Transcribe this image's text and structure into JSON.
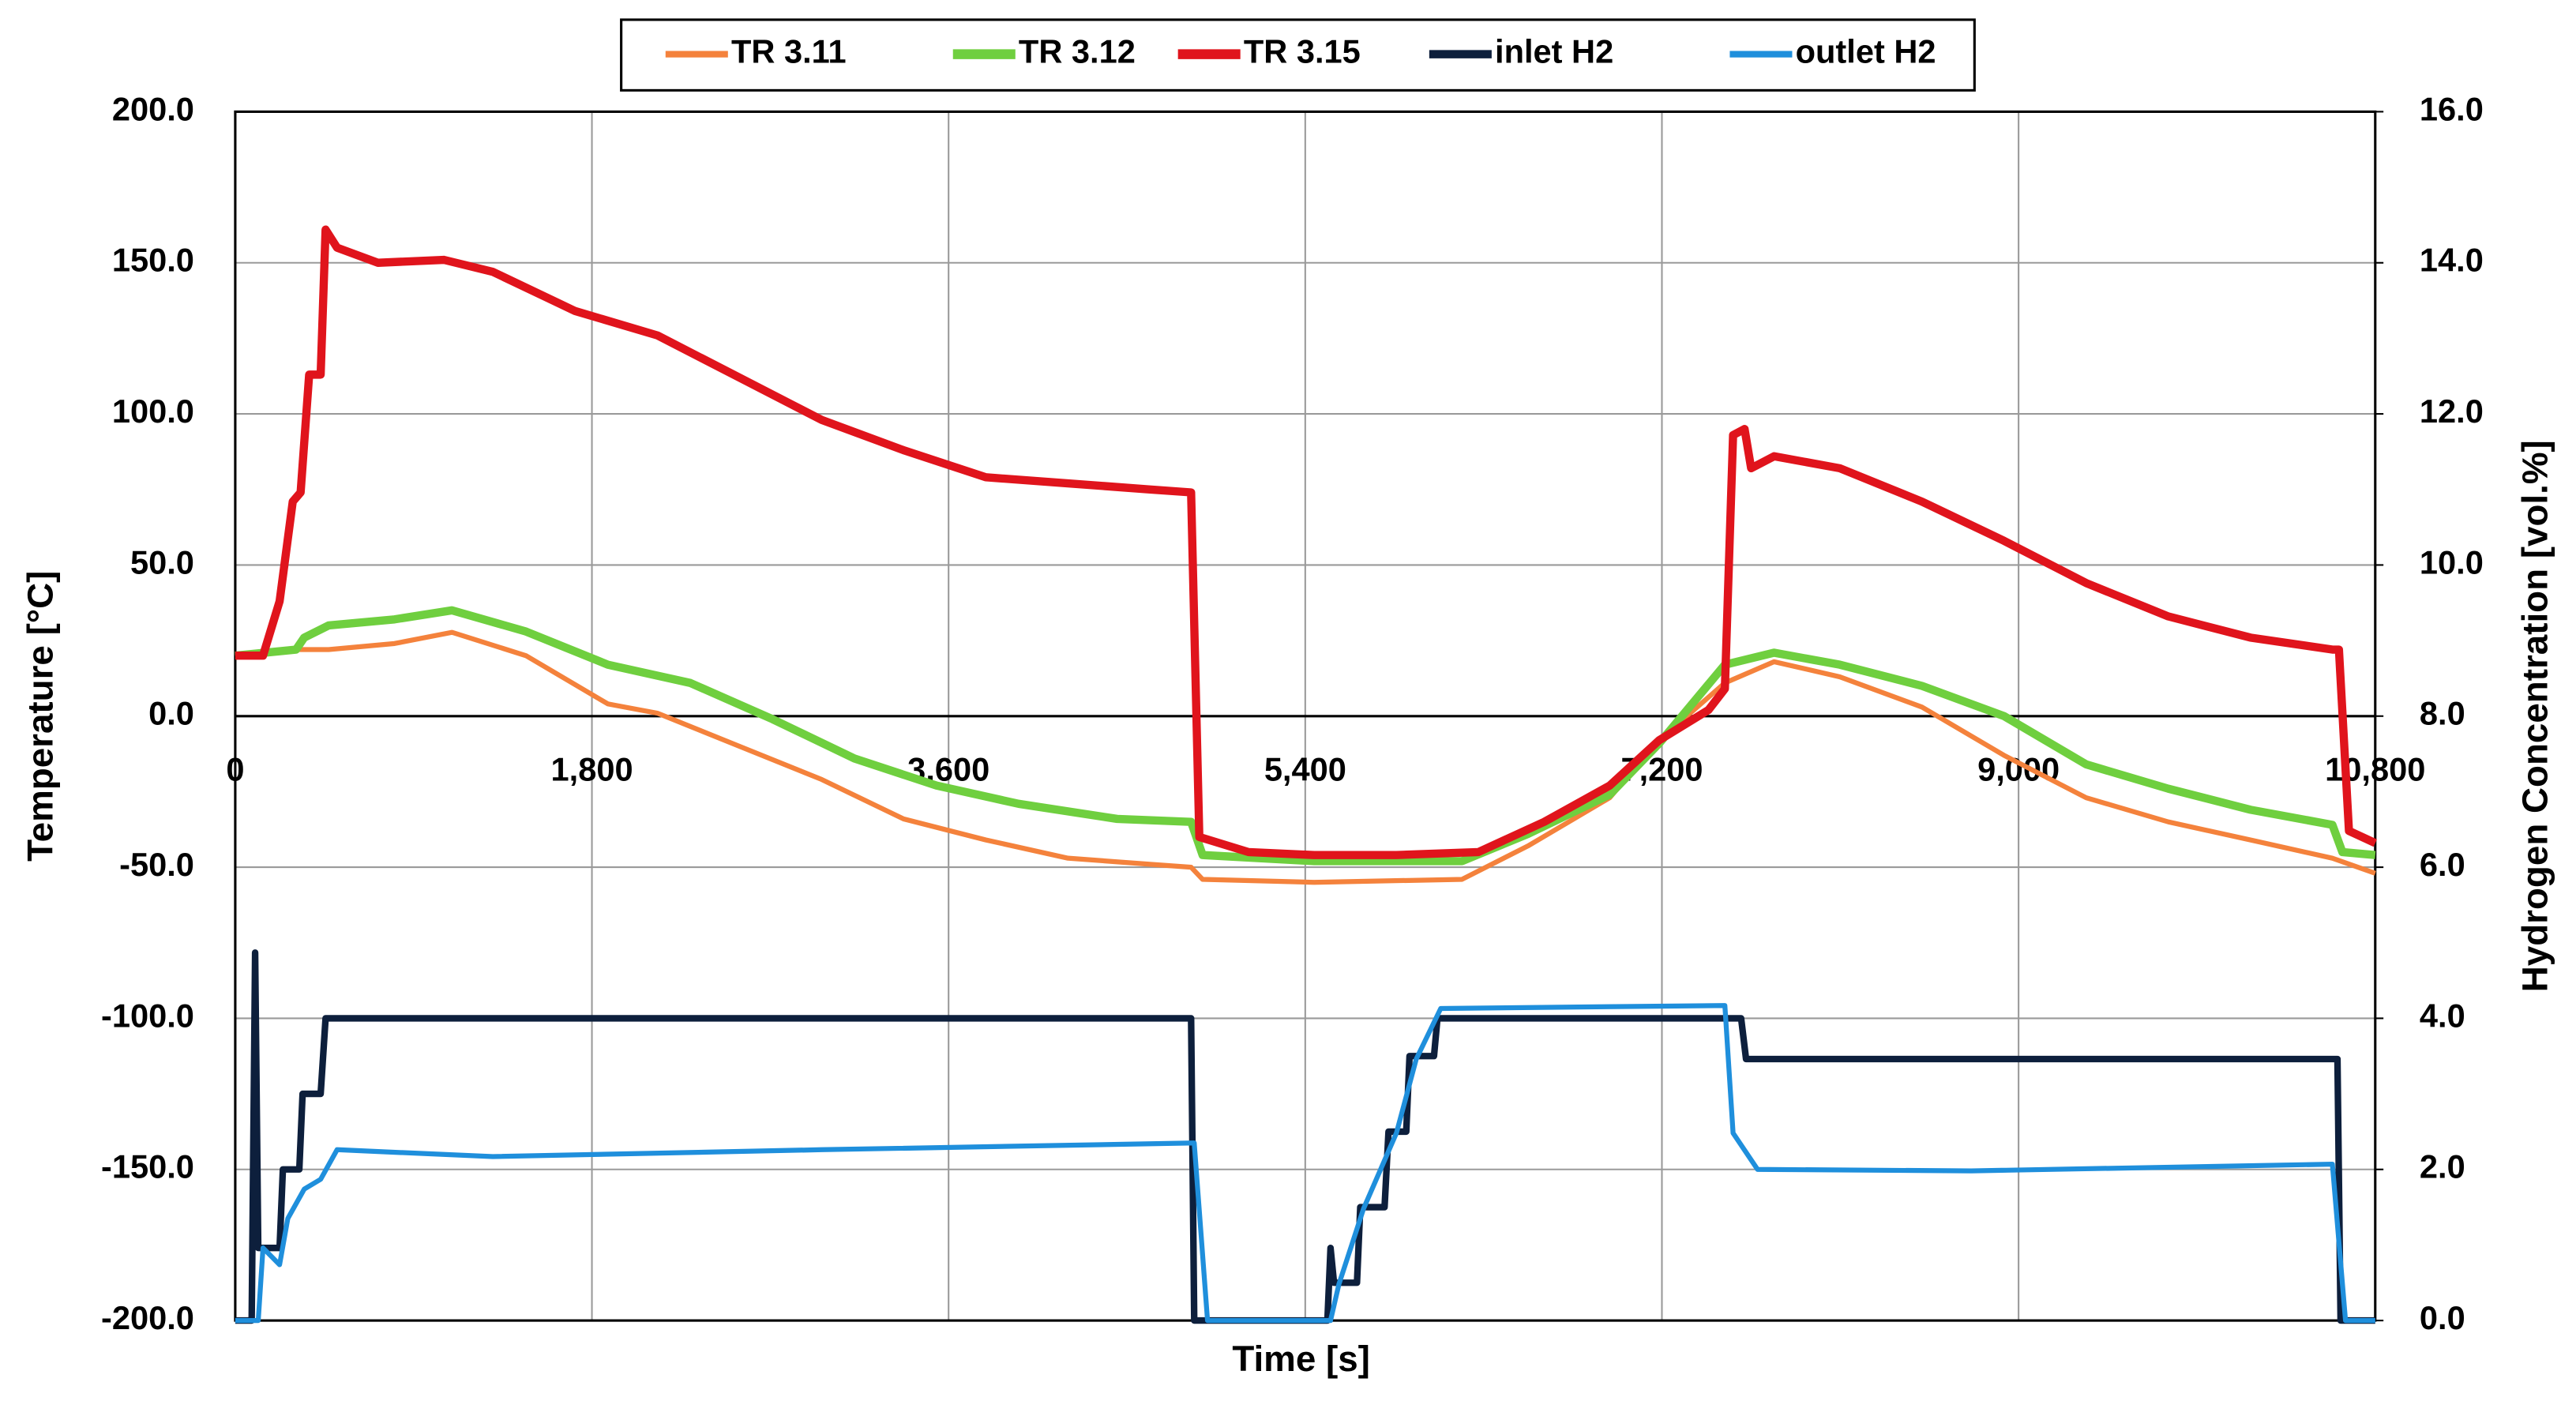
{
  "chart_data": {
    "type": "line",
    "xlabel": "Time [s]",
    "ylabel": "Temperature [°C]",
    "y2label": "Hydrogen Concentration [vol.%]",
    "xlim": [
      0,
      10800
    ],
    "xticks": [
      0,
      {
        "value": 1800,
        "label": "1,800"
      },
      {
        "value": 3600,
        "label": "3,600"
      },
      {
        "value": 5400,
        "label": "5,400"
      },
      {
        "value": 7200,
        "label": "7,200"
      },
      {
        "value": 9000,
        "label": "9,000"
      },
      {
        "value": 10800,
        "label": "10,800"
      }
    ],
    "ylim": [
      -200,
      200
    ],
    "yticks": [
      {
        "value": -200,
        "label": "-200.0"
      },
      {
        "value": -150,
        "label": "-150.0"
      },
      {
        "value": -100,
        "label": "-100.0"
      },
      {
        "value": -50,
        "label": "-50.0"
      },
      {
        "value": 0,
        "label": "0.0"
      },
      {
        "value": 50,
        "label": "50.0"
      },
      {
        "value": 100,
        "label": "100.0"
      },
      {
        "value": 150,
        "label": "150.0"
      },
      {
        "value": 200,
        "label": "200.0"
      }
    ],
    "y2lim": [
      0,
      16
    ],
    "y2ticks": [
      {
        "value": 0,
        "label": "0.0"
      },
      {
        "value": 2,
        "label": "2.0"
      },
      {
        "value": 4,
        "label": "4.0"
      },
      {
        "value": 6,
        "label": "6.0"
      },
      {
        "value": 8,
        "label": "8.0"
      },
      {
        "value": 10,
        "label": "10.0"
      },
      {
        "value": 12,
        "label": "12.0"
      },
      {
        "value": 14,
        "label": "14.0"
      },
      {
        "value": 16,
        "label": "16.0"
      }
    ],
    "grid": true,
    "legend": "top",
    "series": [
      {
        "name": "TR 3.11",
        "color": "#f4823c",
        "x": [
          0,
          300,
          472,
          804,
          1094,
          1467,
          1881,
          2130,
          2545,
          2960,
          3373,
          3788,
          4202,
          4617,
          4824,
          4882,
          5445,
          6191,
          6523,
          6937,
          7186,
          7518,
          7766,
          8098,
          8512,
          8927,
          9341,
          9756,
          10170,
          10584,
          10800
        ],
        "values": [
          20,
          22,
          22,
          24,
          27.7,
          20,
          4,
          1,
          -10,
          -21,
          -34,
          -41,
          -47,
          -49,
          -50,
          -54,
          -55,
          -54,
          -43,
          -27,
          -8,
          11,
          18,
          13,
          3,
          -13,
          -27,
          -35,
          -41,
          -47,
          -52
        ]
      },
      {
        "name": "TR 3.12",
        "color": "#6fcf3f",
        "x": [
          0,
          307,
          348,
          472,
          804,
          1094,
          1467,
          1881,
          2296,
          2710,
          3125,
          3539,
          3954,
          4451,
          4824,
          4882,
          5445,
          6191,
          6523,
          6937,
          7186,
          7518,
          7766,
          8098,
          8512,
          8927,
          9341,
          9756,
          10170,
          10584,
          10634,
          10800
        ],
        "values": [
          20,
          22,
          26,
          30,
          32,
          35,
          28,
          17,
          11,
          -1,
          -14,
          -23,
          -29,
          -34,
          -35,
          -46,
          -48,
          -48,
          -39,
          -26,
          -9,
          17,
          21,
          17,
          10,
          0,
          -16,
          -24,
          -31,
          -36,
          -45,
          -46
        ]
      },
      {
        "name": "TR 3.15",
        "color": "#e0141c",
        "x": [
          0,
          140,
          224,
          290,
          330,
          373,
          431,
          456,
          514,
          720,
          1053,
          1300,
          1716,
          2130,
          2545,
          2960,
          3373,
          3788,
          4202,
          4617,
          4824,
          4865,
          5114,
          5445,
          5860,
          6274,
          6606,
          6937,
          7186,
          7435,
          7518,
          7559,
          7617,
          7650,
          7766,
          8098,
          8512,
          8927,
          9341,
          9756,
          10170,
          10584,
          10617,
          10667,
          10800
        ],
        "values": [
          20,
          20,
          38,
          71,
          74,
          113,
          113,
          161,
          155,
          150,
          151,
          147,
          134,
          126,
          112,
          98,
          88,
          79,
          77,
          75,
          74,
          -40,
          -45,
          -46,
          -46,
          -45,
          -35,
          -23,
          -8,
          2,
          9,
          93,
          95,
          82,
          86,
          82,
          71,
          58,
          44,
          33,
          26,
          22,
          22,
          -38,
          -42
        ]
      },
      {
        "name": "inlet H2",
        "color": "#0d1f3c",
        "axis": "y2",
        "x": [
          0,
          83,
          100,
          116,
          224,
          240,
          323,
          340,
          431,
          456,
          4824,
          4840,
          5512,
          5528,
          5545,
          5595,
          5661,
          5678,
          5800,
          5820,
          5910,
          5926,
          6050,
          6067,
          7600,
          7625,
          10609,
          10625,
          10800
        ],
        "values": [
          0,
          0,
          4.87,
          0.96,
          0.96,
          2.0,
          2.0,
          3.0,
          3.0,
          4.0,
          4.0,
          0,
          0,
          0.96,
          0.5,
          0.5,
          0.5,
          1.5,
          1.5,
          2.5,
          2.5,
          3.5,
          3.5,
          4.0,
          4.0,
          3.46,
          3.46,
          0,
          0
        ]
      },
      {
        "name": "outlet H2",
        "color": "#1f8fdc",
        "axis": "y2",
        "x": [
          0,
          116,
          140,
          224,
          265,
          348,
          431,
          514,
          1300,
          2960,
          4840,
          4907,
          5528,
          5570,
          5694,
          5860,
          5960,
          6084,
          7518,
          7559,
          7683,
          8761,
          10584,
          10650,
          10800
        ],
        "values": [
          0,
          0,
          0.96,
          0.74,
          1.35,
          1.74,
          1.87,
          2.26,
          2.17,
          2.26,
          2.35,
          0,
          0,
          0.48,
          1.48,
          2.48,
          3.46,
          4.13,
          4.17,
          2.48,
          2.0,
          1.98,
          2.07,
          0,
          0
        ]
      }
    ]
  }
}
